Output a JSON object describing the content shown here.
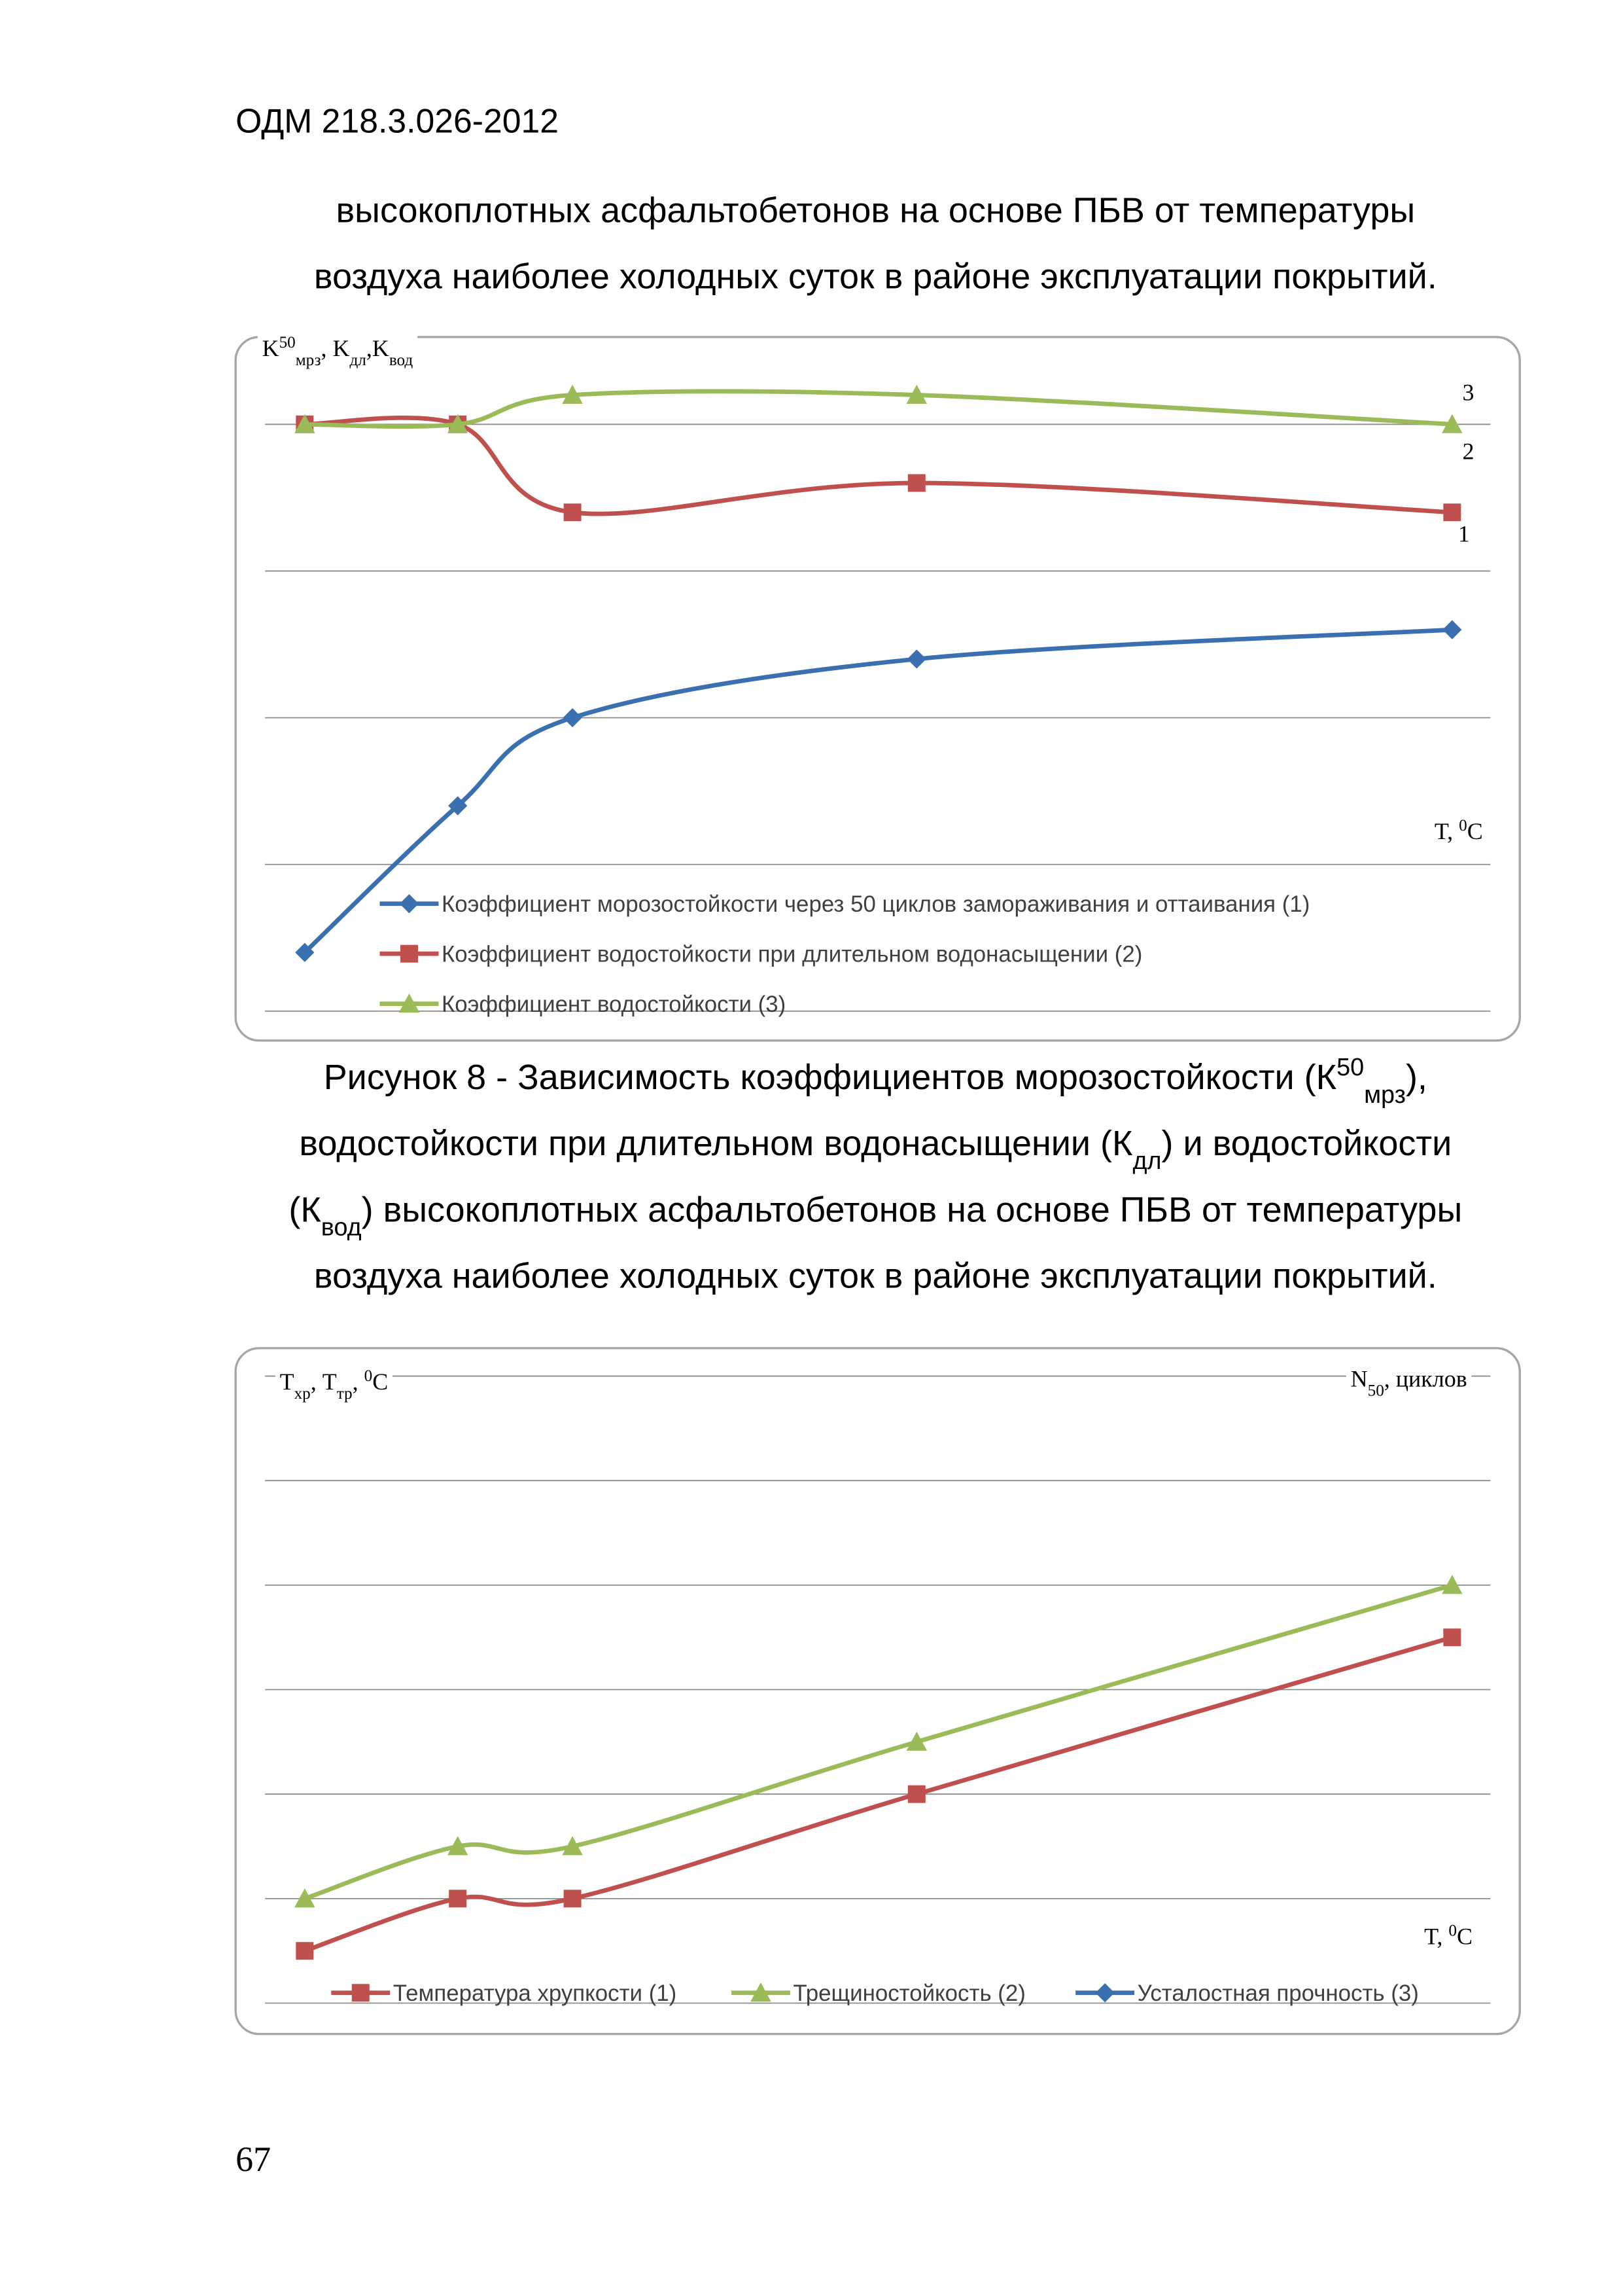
{
  "header": "ОДМ 218.3.026-2012",
  "intro": [
    "высокоплотных асфальтобетонов на основе ПБВ от температуры",
    "воздуха наиболее холодных суток в районе эксплуатации покрытий."
  ],
  "chart_data": [
    {
      "type": "line",
      "smooth": true,
      "grid": true,
      "ylabel": [
        {
          "t": "K"
        },
        {
          "sup": "50"
        },
        {
          "sub": "мрз"
        },
        {
          "t": ", K"
        },
        {
          "sub": "дл"
        },
        {
          "t": ",K"
        },
        {
          "sub": "вод"
        }
      ],
      "xlabel": [
        {
          "t": "T, "
        },
        {
          "sup": "0"
        },
        {
          "t": "C"
        }
      ],
      "annotations": [
        "3",
        "2",
        "1"
      ],
      "x": [
        0,
        1,
        1.75,
        4,
        7.5
      ],
      "xlim": [
        0,
        7.5
      ],
      "ylim": [
        0,
        4.6
      ],
      "yticks": [
        0,
        1,
        2,
        3,
        4
      ],
      "series": [
        {
          "name": "Коэффициент морозостойкости через 50 циклов замораживания и оттаивания (1)",
          "color": "#3a6fb0",
          "marker": "diamond",
          "values": [
            0.4,
            1.4,
            2.0,
            2.4,
            2.6
          ]
        },
        {
          "name": "Коэффициент водостойкости при длительном водонасыщении (2)",
          "color": "#c0504d",
          "marker": "square",
          "values": [
            4.0,
            4.0,
            3.4,
            3.6,
            3.4
          ]
        },
        {
          "name": "Коэффициент водостойкости (3)",
          "color": "#9bbb59",
          "marker": "triangle",
          "values": [
            4.0,
            4.0,
            4.2,
            4.2,
            4.0
          ]
        }
      ]
    },
    {
      "type": "line",
      "smooth": true,
      "grid": true,
      "ylabel": [
        {
          "t": "T"
        },
        {
          "sub": "хр"
        },
        {
          "t": ", T"
        },
        {
          "sub": "тр"
        },
        {
          "t": ", "
        },
        {
          "sup": "0"
        },
        {
          "t": "C"
        }
      ],
      "y2label": [
        {
          "t": "N"
        },
        {
          "sub": "50"
        },
        {
          "t": ", циклов"
        }
      ],
      "xlabel": [
        {
          "t": "T, "
        },
        {
          "sup": "0"
        },
        {
          "t": "C"
        }
      ],
      "x": [
        0,
        1,
        1.75,
        4,
        7.5
      ],
      "xlim": [
        0,
        7.5
      ],
      "ylim": [
        0,
        6
      ],
      "yticks": [
        0,
        1,
        2,
        3,
        4,
        5,
        6
      ],
      "series": [
        {
          "name": "Температура хрупкости (1)",
          "color": "#c0504d",
          "marker": "square",
          "values": [
            0.5,
            1,
            1,
            2,
            3.5
          ]
        },
        {
          "name": "Трещиностойкость (2)",
          "color": "#9bbb59",
          "marker": "triangle",
          "values": [
            1,
            1.5,
            1.5,
            2.5,
            4
          ]
        },
        {
          "name": "Усталостная прочность (3)",
          "color": "#3a6fb0",
          "marker": "diamond",
          "values": [
            null,
            null,
            null,
            null,
            null
          ]
        }
      ]
    }
  ],
  "caption": [
    [
      {
        "t": "Рисунок 8 -  Зависимость коэффициентов морозостойкости (К"
      },
      {
        "sup": "50"
      },
      {
        "sub": "мрз"
      },
      {
        "t": "),"
      }
    ],
    [
      {
        "t": "водостойкости при длительном водонасыщении (К"
      },
      {
        "sub": "дл"
      },
      {
        "t": ") и водостойкости"
      }
    ],
    [
      {
        "t": "(К"
      },
      {
        "sub": "вод"
      },
      {
        "t": ") высокоплотных асфальтобетонов на основе ПБВ от температуры"
      }
    ],
    [
      {
        "t": "воздуха наиболее холодных суток в районе эксплуатации покрытий."
      }
    ]
  ],
  "page_number": "67"
}
